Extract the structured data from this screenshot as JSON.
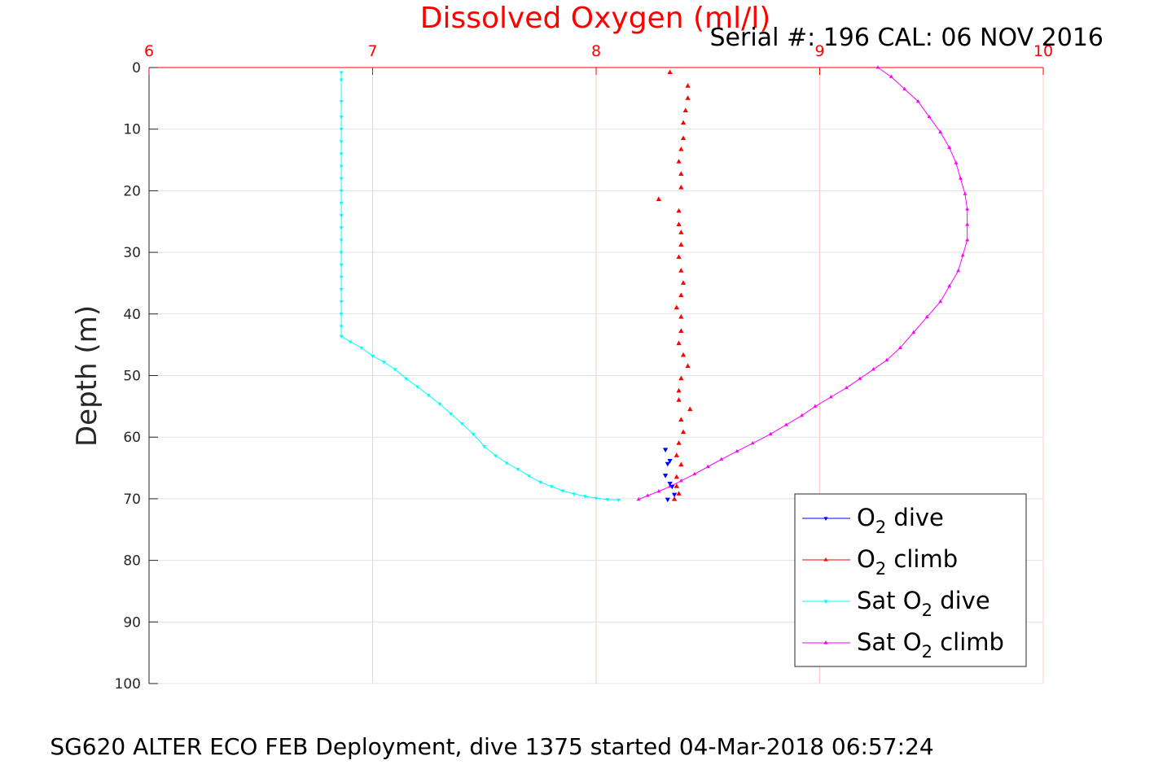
{
  "chart_data": {
    "type": "scatter",
    "title": "Dissolved Oxygen (ml/l)",
    "subtitle": "Serial #: 196  CAL: 06 NOV 2016",
    "xlabel": "Dissolved Oxygen (ml/l)",
    "ylabel": "Depth (m)",
    "caption": "SG620 ALTER ECO FEB Deployment, dive 1375 started 04-Mar-2018 06:57:24",
    "xlim": [
      6,
      10
    ],
    "ylim": [
      0,
      100
    ],
    "y_reversed": true,
    "x_axis_position": "top",
    "grid": true,
    "x_ticks": [
      6,
      7,
      8,
      9,
      10
    ],
    "y_ticks": [
      0,
      10,
      20,
      30,
      40,
      50,
      60,
      70,
      80,
      90,
      100
    ],
    "legend": {
      "placement": "bottom-right",
      "entries": [
        {
          "series": "o2_dive",
          "parts": [
            [
              "O",
              ""
            ],
            [
              "2",
              "sub"
            ],
            [
              " dive",
              ""
            ]
          ]
        },
        {
          "series": "o2_climb",
          "parts": [
            [
              "O",
              ""
            ],
            [
              "2",
              "sub"
            ],
            [
              " climb",
              ""
            ]
          ]
        },
        {
          "series": "sat_dive",
          "parts": [
            [
              "Sat O",
              ""
            ],
            [
              "2",
              "sub"
            ],
            [
              " dive",
              ""
            ]
          ]
        },
        {
          "series": "sat_climb",
          "parts": [
            [
              "Sat O",
              ""
            ],
            [
              "2",
              "sub"
            ],
            [
              " climb",
              ""
            ]
          ]
        }
      ]
    },
    "series": [
      {
        "id": "o2_dive",
        "name": "O2 dive",
        "color": "#0000ff",
        "marker": "triangle-down",
        "line": false,
        "points": [
          [
            8.31,
            62.0
          ],
          [
            8.33,
            63.8
          ],
          [
            8.32,
            64.3
          ],
          [
            8.31,
            66.2
          ],
          [
            8.33,
            67.5
          ],
          [
            8.34,
            68.0
          ],
          [
            8.35,
            69.3
          ],
          [
            8.32,
            70.1
          ]
        ]
      },
      {
        "id": "o2_climb",
        "name": "O2 climb",
        "color": "#ff0000",
        "marker": "triangle-up",
        "line": false,
        "points": [
          [
            8.33,
            0.8
          ],
          [
            8.41,
            3.0
          ],
          [
            8.41,
            5.0
          ],
          [
            8.4,
            7.0
          ],
          [
            8.39,
            9.0
          ],
          [
            8.39,
            11.5
          ],
          [
            8.38,
            13.3
          ],
          [
            8.37,
            15.3
          ],
          [
            8.38,
            17.3
          ],
          [
            8.38,
            19.5
          ],
          [
            8.28,
            21.4
          ],
          [
            8.37,
            23.3
          ],
          [
            8.37,
            25.5
          ],
          [
            8.38,
            26.8
          ],
          [
            8.38,
            28.8
          ],
          [
            8.37,
            30.8
          ],
          [
            8.38,
            33.0
          ],
          [
            8.39,
            35.0
          ],
          [
            8.38,
            37.0
          ],
          [
            8.36,
            39.0
          ],
          [
            8.38,
            40.5
          ],
          [
            8.38,
            42.8
          ],
          [
            8.37,
            44.8
          ],
          [
            8.39,
            46.7
          ],
          [
            8.41,
            48.5
          ],
          [
            8.38,
            50.5
          ],
          [
            8.37,
            52.5
          ],
          [
            8.37,
            54.0
          ],
          [
            8.42,
            55.5
          ],
          [
            8.38,
            57.2
          ],
          [
            8.39,
            59.2
          ],
          [
            8.37,
            61.0
          ],
          [
            8.36,
            63.0
          ],
          [
            8.38,
            64.5
          ],
          [
            8.36,
            66.5
          ],
          [
            8.36,
            68.0
          ],
          [
            8.37,
            69.2
          ],
          [
            8.35,
            70.1
          ]
        ]
      },
      {
        "id": "sat_dive",
        "name": "Sat O2 dive",
        "color": "#00ffff",
        "marker": "triangle-down",
        "line": true,
        "points": [
          [
            6.86,
            0.8
          ],
          [
            6.86,
            2.0
          ],
          [
            6.86,
            5.5
          ],
          [
            6.86,
            8.0
          ],
          [
            6.86,
            10.0
          ],
          [
            6.86,
            12.0
          ],
          [
            6.86,
            14.0
          ],
          [
            6.86,
            16.0
          ],
          [
            6.86,
            18.0
          ],
          [
            6.86,
            20.0
          ],
          [
            6.86,
            22.0
          ],
          [
            6.86,
            24.0
          ],
          [
            6.86,
            26.0
          ],
          [
            6.86,
            28.0
          ],
          [
            6.86,
            30.0
          ],
          [
            6.86,
            32.0
          ],
          [
            6.86,
            34.0
          ],
          [
            6.86,
            36.0
          ],
          [
            6.86,
            38.0
          ],
          [
            6.86,
            40.0
          ],
          [
            6.86,
            42.0
          ],
          [
            6.86,
            43.6
          ],
          [
            6.9,
            44.5
          ],
          [
            6.95,
            45.5
          ],
          [
            7.0,
            46.8
          ],
          [
            7.05,
            47.8
          ],
          [
            7.1,
            49.0
          ],
          [
            7.15,
            50.5
          ],
          [
            7.2,
            51.8
          ],
          [
            7.25,
            53.2
          ],
          [
            7.3,
            54.6
          ],
          [
            7.35,
            56.2
          ],
          [
            7.4,
            57.8
          ],
          [
            7.45,
            59.5
          ],
          [
            7.5,
            61.5
          ],
          [
            7.55,
            63.0
          ],
          [
            7.6,
            64.2
          ],
          [
            7.65,
            65.2
          ],
          [
            7.7,
            66.3
          ],
          [
            7.75,
            67.3
          ],
          [
            7.8,
            68.0
          ],
          [
            7.85,
            68.7
          ],
          [
            7.9,
            69.2
          ],
          [
            7.95,
            69.6
          ],
          [
            8.0,
            69.9
          ],
          [
            8.05,
            70.1
          ],
          [
            8.1,
            70.2
          ]
        ]
      },
      {
        "id": "sat_climb",
        "name": "Sat O2 climb",
        "color": "#ff00ff",
        "marker": "triangle-up",
        "line": true,
        "points": [
          [
            9.26,
            0.0
          ],
          [
            9.32,
            1.5
          ],
          [
            9.38,
            3.5
          ],
          [
            9.44,
            5.5
          ],
          [
            9.49,
            8.0
          ],
          [
            9.54,
            10.5
          ],
          [
            9.58,
            13.0
          ],
          [
            9.61,
            15.5
          ],
          [
            9.63,
            18.0
          ],
          [
            9.65,
            20.5
          ],
          [
            9.66,
            23.0
          ],
          [
            9.66,
            25.5
          ],
          [
            9.66,
            28.0
          ],
          [
            9.64,
            30.5
          ],
          [
            9.62,
            33.0
          ],
          [
            9.58,
            35.5
          ],
          [
            9.54,
            38.0
          ],
          [
            9.48,
            40.5
          ],
          [
            9.42,
            43.0
          ],
          [
            9.36,
            45.5
          ],
          [
            9.3,
            47.5
          ],
          [
            9.24,
            49.0
          ],
          [
            9.18,
            50.5
          ],
          [
            9.12,
            52.0
          ],
          [
            9.05,
            53.5
          ],
          [
            8.98,
            55.0
          ],
          [
            8.92,
            56.5
          ],
          [
            8.85,
            58.0
          ],
          [
            8.78,
            59.5
          ],
          [
            8.7,
            61.0
          ],
          [
            8.63,
            62.3
          ],
          [
            8.56,
            63.6
          ],
          [
            8.5,
            64.8
          ],
          [
            8.44,
            66.0
          ],
          [
            8.38,
            67.1
          ],
          [
            8.33,
            68.0
          ],
          [
            8.28,
            68.8
          ],
          [
            8.23,
            69.5
          ],
          [
            8.19,
            70.1
          ]
        ]
      }
    ]
  }
}
